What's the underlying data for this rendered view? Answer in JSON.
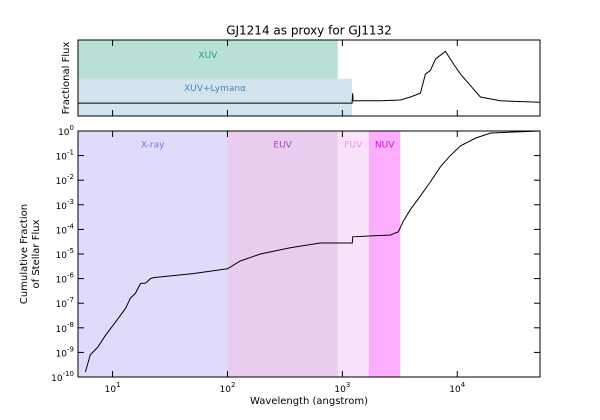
{
  "chart_data": [
    {
      "type": "line",
      "title": "GJ1214 as proxy for GJ1132",
      "y_label": "Fractional Flux",
      "log_x": true,
      "xlim": [
        5,
        52500
      ],
      "xticks": [
        10,
        100,
        1000,
        10000
      ],
      "ylim": [
        0,
        1
      ],
      "regions": [
        {
          "label": "XUV",
          "x": [
            5,
            912
          ],
          "y": [
            0.49,
            1
          ],
          "color": "#b9e0d6",
          "label_color": "#2a9a86"
        },
        {
          "label": "XUV+Lymanα",
          "x": [
            5,
            1216
          ],
          "y": [
            0,
            0.49
          ],
          "color": "#d3e4ee",
          "label_color": "#4a86b8"
        }
      ],
      "series": [
        {
          "color": "#000000",
          "x": [
            5,
            1216,
            1230,
            1240,
            2100,
            3200,
            3900,
            4780,
            5280,
            5840,
            6460,
            7130,
            7880,
            8700,
            9620,
            10700,
            13000,
            15900,
            23600,
            52500
          ],
          "values": [
            0.17,
            0.17,
            0.3,
            0.2,
            0.2,
            0.21,
            0.25,
            0.3,
            0.55,
            0.6,
            0.75,
            0.8,
            0.85,
            0.75,
            0.65,
            0.55,
            0.4,
            0.25,
            0.2,
            0.18
          ]
        }
      ]
    },
    {
      "type": "line",
      "x_label": "Wavelength (angstrom)",
      "y_label": [
        "Cumulative Fraction",
        "of Stellar Flux"
      ],
      "log_x": true,
      "log_y": true,
      "xlim": [
        5,
        52500
      ],
      "ylim": [
        1e-10,
        1
      ],
      "xticks": [
        {
          "value": 10,
          "label": "10",
          "exponent": "1"
        },
        {
          "value": 100,
          "label": "10",
          "exponent": "2"
        },
        {
          "value": 1000,
          "label": "10",
          "exponent": "3"
        },
        {
          "value": 10000,
          "label": "10",
          "exponent": "4"
        }
      ],
      "yticks": [
        {
          "value": 1e-10,
          "label": "10",
          "exponent": "-10"
        },
        {
          "value": 1e-09,
          "label": "10",
          "exponent": "-9"
        },
        {
          "value": 1e-08,
          "label": "10",
          "exponent": "-8"
        },
        {
          "value": 1e-07,
          "label": "10",
          "exponent": "-7"
        },
        {
          "value": 1e-06,
          "label": "10",
          "exponent": "-6"
        },
        {
          "value": 1e-05,
          "label": "10",
          "exponent": "-5"
        },
        {
          "value": 0.0001,
          "label": "10",
          "exponent": "-4"
        },
        {
          "value": 0.001,
          "label": "10",
          "exponent": "-3"
        },
        {
          "value": 0.01,
          "label": "10",
          "exponent": "-2"
        },
        {
          "value": 0.1,
          "label": "10",
          "exponent": "-1"
        },
        {
          "value": 1,
          "label": "10",
          "exponent": "0"
        }
      ],
      "regions": [
        {
          "label": "X-ray",
          "x": [
            5,
            100
          ],
          "color": "#dedcfa",
          "label_color": "#7d72d6"
        },
        {
          "label": "EUV",
          "x": [
            100,
            912
          ],
          "color": "#e8cdee",
          "label_color": "#a847c4"
        },
        {
          "label": "FUV",
          "x": [
            912,
            1700
          ],
          "color": "#fbe2fb",
          "label_color": "#f08cf0"
        },
        {
          "label": "NUV",
          "x": [
            1700,
            3200
          ],
          "color": "#fcaefc",
          "label_color": "#d010d0"
        }
      ],
      "series": [
        {
          "color": "#000000",
          "x": [
            5.8,
            6.4,
            7.4,
            8.7,
            10.6,
            13,
            14.3,
            15.8,
            17.5,
            19.4,
            21.4,
            22.7,
            50,
            100,
            129,
            193,
            352,
            640,
            960,
            1220,
            1230,
            1716,
            2620,
            3070,
            3400,
            3900,
            4780,
            5840,
            7130,
            8700,
            10700,
            14500,
            19600,
            52500
          ],
          "values": [
            1.6e-10,
            8e-10,
            1.6e-09,
            5e-09,
            1.7e-08,
            6.3e-08,
            1.6e-07,
            2.5e-07,
            6.3e-07,
            6.6e-07,
            1e-06,
            1.1e-06,
            1.6e-06,
            2.5e-06,
            5.2e-06,
            1e-05,
            1.8e-05,
            2.8e-05,
            2.8e-05,
            2.8e-05,
            5e-05,
            5.4e-05,
            5.9e-05,
            8e-05,
            0.00022,
            0.00063,
            0.0023,
            0.0085,
            0.035,
            0.1,
            0.25,
            0.52,
            0.83,
            1
          ]
        }
      ]
    }
  ]
}
